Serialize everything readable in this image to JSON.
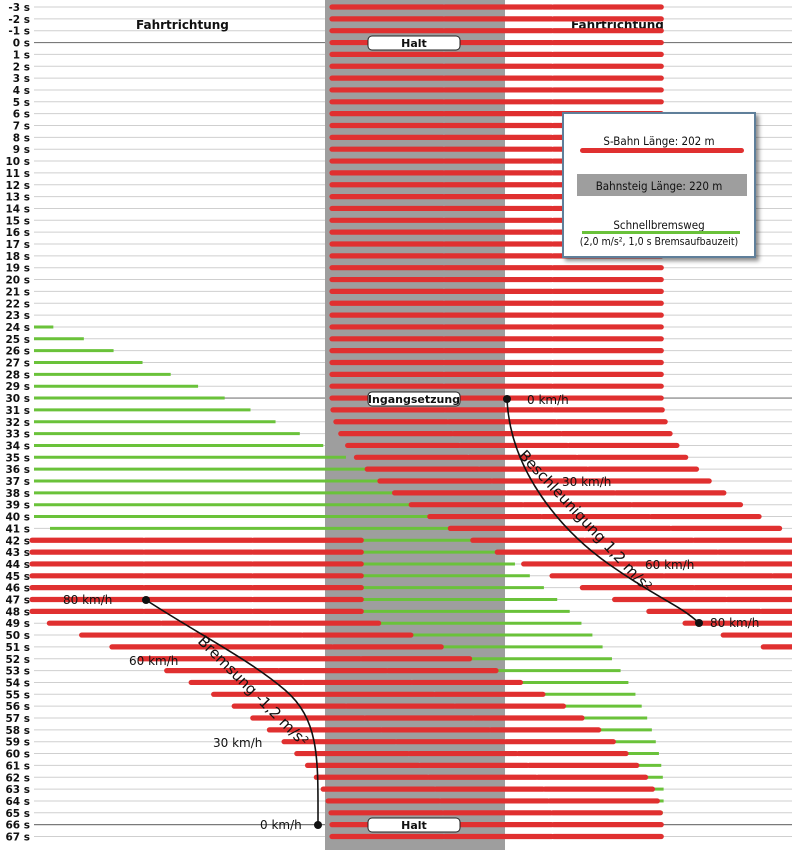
{
  "direction_label": "Fahrtrichtung",
  "time_range": {
    "from": -3,
    "to": 67,
    "unit": "s"
  },
  "markers": {
    "stop": "Halt",
    "start": "Ingangsetzung"
  },
  "speed_labels": {
    "accel_0": "0 km/h",
    "accel_30": "30 km/h",
    "accel_60": "60 km/h",
    "accel_80": "80 km/h",
    "brake_80": "80 km/h",
    "brake_60": "60 km/h",
    "brake_30": "30 km/h",
    "brake_0": "0 km/h"
  },
  "curves": {
    "acceleration": "Beschleunigung 1,2 m/s²",
    "braking": "Bremsung -1,2 m/s²"
  },
  "legend": {
    "train": "S-Bahn Länge: 202 m",
    "platform": "Bahnsteig Länge: 220 m",
    "brake": "Schnellbremsweg",
    "brake_note": "(2,0 m/s², 1,0 s Bremsaufbauzeit)"
  },
  "colors": {
    "train": "#e03030",
    "platform": "#9e9e9e",
    "brake": "#6ac23a",
    "grid": "#cfcfcf"
  },
  "chart_data": {
    "type": "diagram",
    "x_unit": "m",
    "y_unit": "s",
    "train_length_m": 202,
    "platform_length_m": 220,
    "acceleration_m_s2": 1.2,
    "deceleration_m_s2": -1.2,
    "emergency_deceleration_m_s2": 2.0,
    "brake_buildup_s": 1.0,
    "stop_times_s": [
      0,
      66
    ],
    "departure_time_s": 30,
    "speed_markers_kmh": [
      0,
      30,
      60,
      80
    ]
  }
}
